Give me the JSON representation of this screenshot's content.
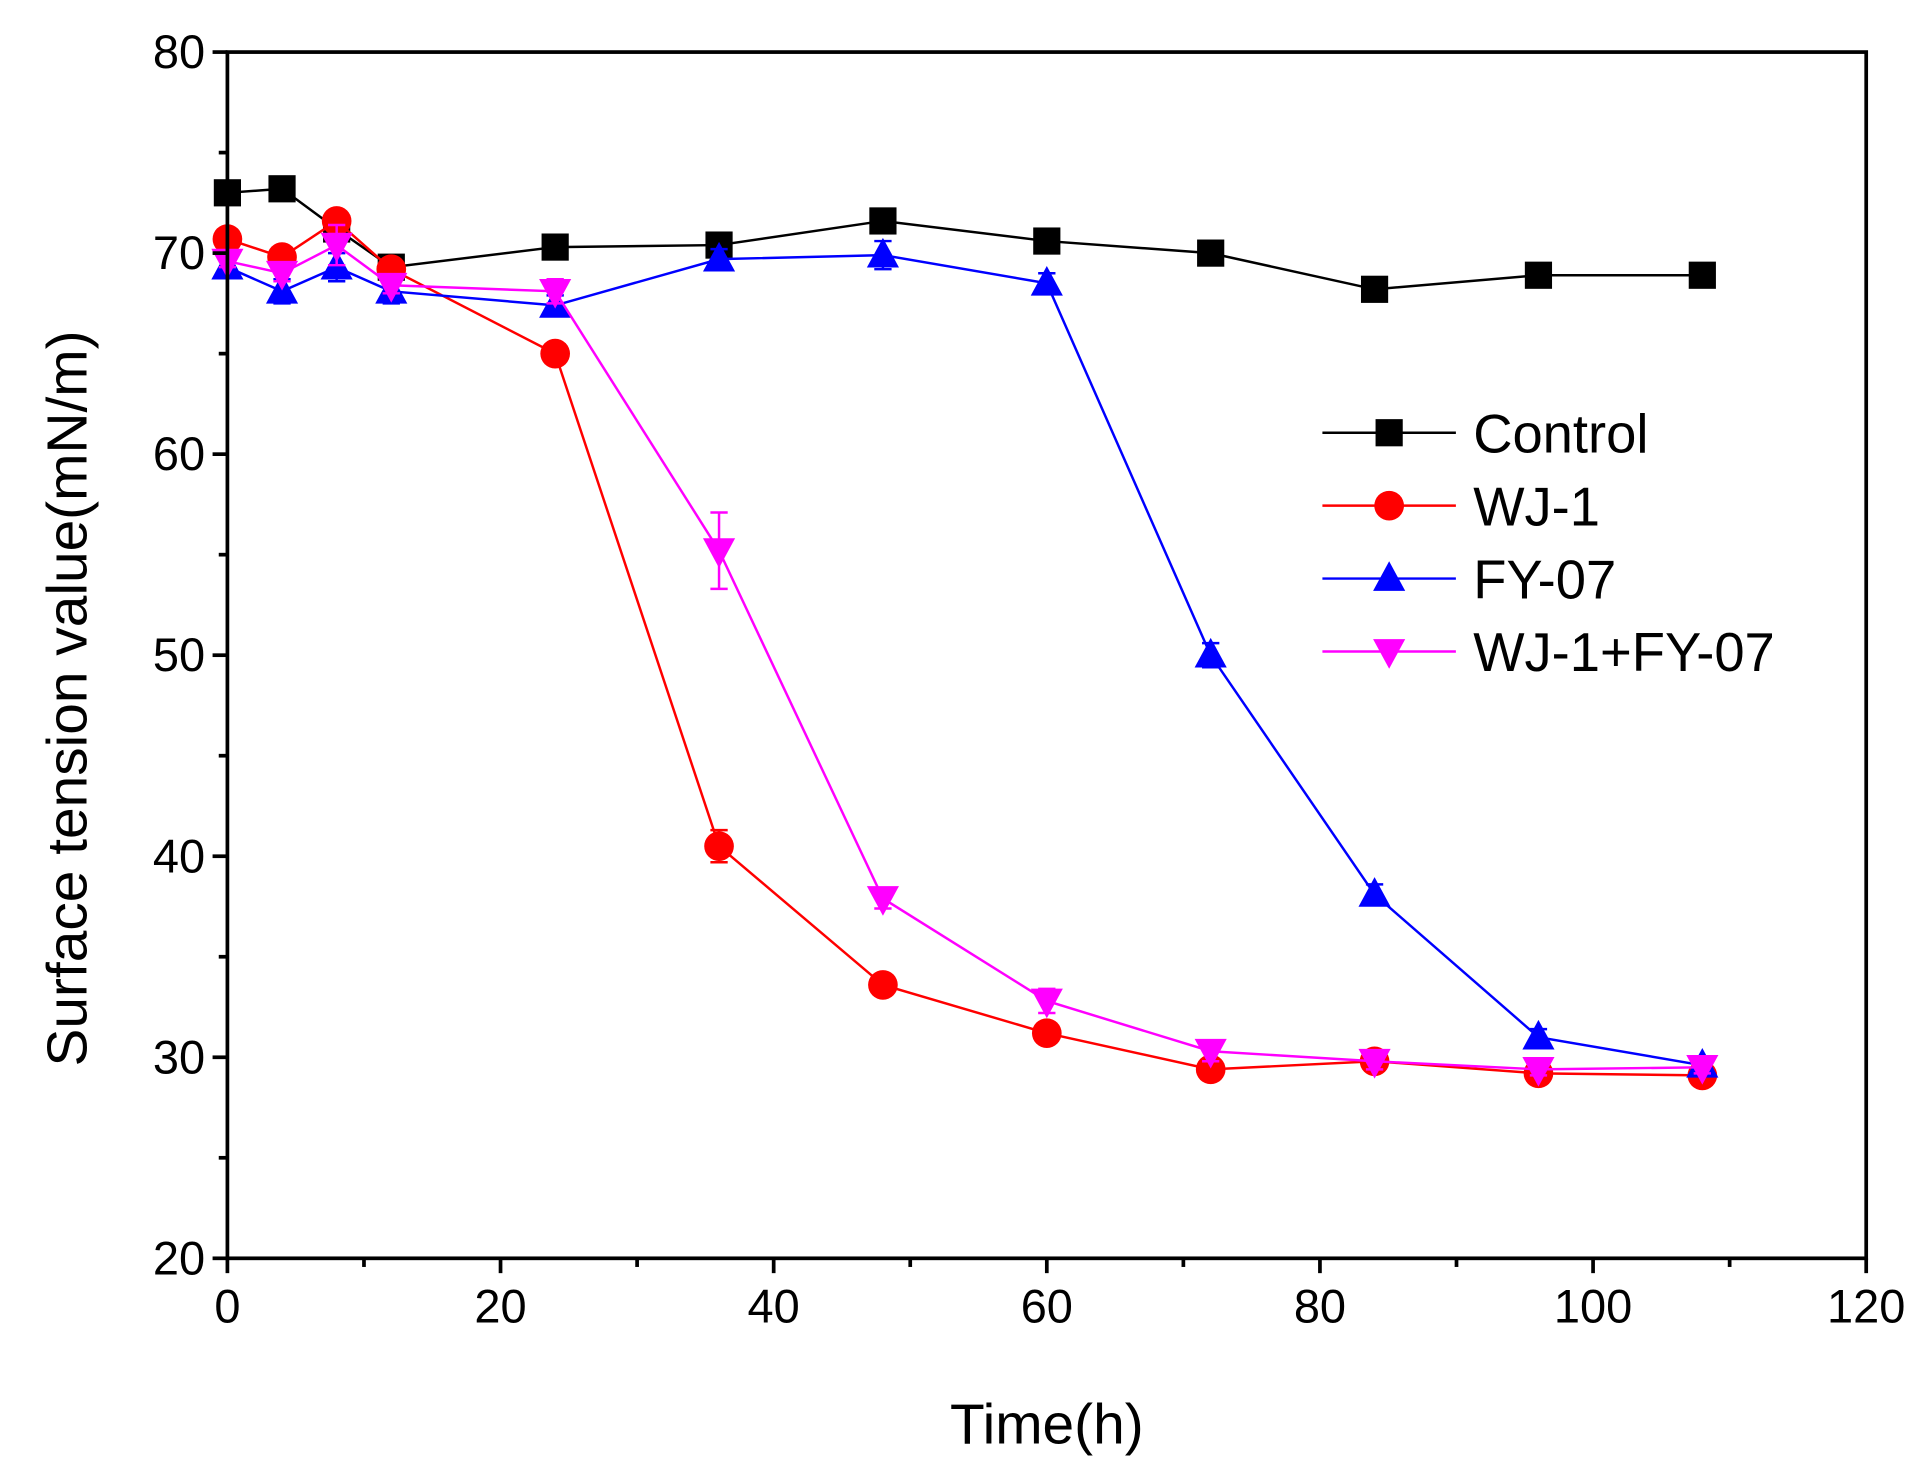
{
  "chart_data": {
    "type": "line",
    "title": "",
    "xlabel": "Time(h)",
    "ylabel": "Surface tension value(mN/m)",
    "xlim": [
      0,
      120
    ],
    "ylim": [
      20,
      80
    ],
    "xticks": [
      0,
      20,
      40,
      60,
      80,
      100,
      120
    ],
    "yticks": [
      20,
      30,
      40,
      50,
      60,
      70,
      80
    ],
    "grid": false,
    "legend_position": "right-middle",
    "x": [
      0,
      4,
      8,
      12,
      24,
      36,
      48,
      60,
      72,
      84,
      96,
      108
    ],
    "series": [
      {
        "name": "Control",
        "color": "#000000",
        "marker": "square",
        "values": [
          73.0,
          73.2,
          71.2,
          69.3,
          70.3,
          70.4,
          71.6,
          70.6,
          70.0,
          68.2,
          68.9,
          68.9
        ],
        "errors": [
          0.3,
          0.3,
          0.5,
          0.4,
          0.3,
          0.3,
          0.6,
          0.3,
          0.4,
          0.3,
          0.3,
          0.3
        ]
      },
      {
        "name": "WJ-1",
        "color": "#ff0000",
        "marker": "circle",
        "values": [
          70.7,
          69.8,
          71.6,
          69.2,
          65.0,
          40.5,
          33.6,
          31.2,
          29.4,
          29.8,
          29.2,
          29.1
        ],
        "errors": [
          0.3,
          0.4,
          0.3,
          0.4,
          0.3,
          0.8,
          0.3,
          0.3,
          0.3,
          0.4,
          0.3,
          0.3
        ]
      },
      {
        "name": "FY-07",
        "color": "#0000ff",
        "marker": "triangle-up",
        "values": [
          69.3,
          68.1,
          69.3,
          68.1,
          67.4,
          69.7,
          69.9,
          68.5,
          50.0,
          38.1,
          31.0,
          29.6
        ],
        "errors": [
          0.4,
          0.6,
          0.7,
          0.6,
          0.5,
          0.5,
          0.7,
          0.5,
          0.6,
          0.5,
          0.4,
          0.3
        ]
      },
      {
        "name": "WJ-1+FY-07",
        "color": "#ff00ff",
        "marker": "triangle-down",
        "values": [
          69.6,
          69.0,
          70.4,
          68.4,
          68.1,
          55.2,
          37.9,
          32.8,
          30.3,
          29.8,
          29.4,
          29.5
        ],
        "errors": [
          0.3,
          0.4,
          1.0,
          0.4,
          0.6,
          1.9,
          0.5,
          0.6,
          0.5,
          0.4,
          0.3,
          0.3
        ]
      }
    ]
  }
}
